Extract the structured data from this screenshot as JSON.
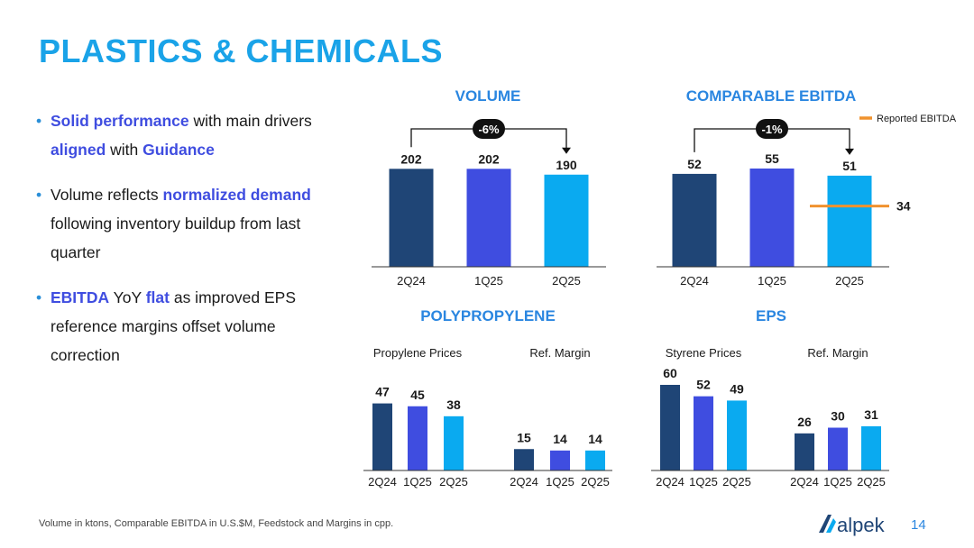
{
  "title": "PLASTICS & CHEMICALS",
  "bullets": [
    [
      {
        "t": "Solid performance",
        "h": true
      },
      {
        "t": " with main drivers ",
        "h": false
      },
      {
        "t": "aligned",
        "h": true
      },
      {
        "t": " with ",
        "h": false
      },
      {
        "t": "Guidance",
        "h": true
      }
    ],
    [
      {
        "t": "Volume reflects ",
        "h": false
      },
      {
        "t": "normalized demand",
        "h": true
      },
      {
        "t": " following inventory buildup from last quarter",
        "h": false
      }
    ],
    [
      {
        "t": "EBITDA",
        "h": true
      },
      {
        "t": " YoY ",
        "h": false
      },
      {
        "t": "flat",
        "h": true
      },
      {
        "t": " as improved EPS reference margins offset volume correction",
        "h": false
      }
    ]
  ],
  "footnote": "Volume in ktons, Comparable EBITDA in U.S.$M, Feedstock and Margins in cpp.",
  "page_number": "14",
  "logo_text": "alpek",
  "colors": {
    "c1": "#1f4576",
    "c2": "#3f4de0",
    "c3": "#0aaaf0",
    "accent": "#f0922e",
    "title": "#1aa3e8"
  },
  "chart_data": [
    {
      "id": "volume",
      "type": "bar",
      "title": "VOLUME",
      "categories": [
        "2Q24",
        "1Q25",
        "2Q25"
      ],
      "values": [
        202,
        202,
        190
      ],
      "ylim": [
        0,
        210
      ],
      "change_label": "-6%"
    },
    {
      "id": "ebitda",
      "type": "bar",
      "title": "COMPARABLE EBITDA",
      "categories": [
        "2Q24",
        "1Q25",
        "2Q25"
      ],
      "values": [
        52,
        55,
        51
      ],
      "ylim": [
        0,
        57
      ],
      "change_label": "-1%",
      "reported": {
        "label": "Reported EBITDA",
        "category": "2Q25",
        "value": 34
      }
    },
    {
      "id": "polypropylene",
      "type": "bar",
      "title": "POLYPROPYLENE",
      "groups": [
        {
          "label": "Propylene Prices",
          "categories": [
            "2Q24",
            "1Q25",
            "2Q25"
          ],
          "values": [
            47,
            45,
            38
          ]
        },
        {
          "label": "Ref. Margin",
          "categories": [
            "2Q24",
            "1Q25",
            "2Q25"
          ],
          "values": [
            15,
            14,
            14
          ]
        }
      ],
      "ylim": [
        0,
        60
      ]
    },
    {
      "id": "eps",
      "type": "bar",
      "title": "EPS",
      "groups": [
        {
          "label": "Styrene Prices",
          "categories": [
            "2Q24",
            "1Q25",
            "2Q25"
          ],
          "values": [
            60,
            52,
            49
          ]
        },
        {
          "label": "Ref. Margin",
          "categories": [
            "2Q24",
            "1Q25",
            "2Q25"
          ],
          "values": [
            26,
            30,
            31
          ]
        }
      ],
      "ylim": [
        0,
        60
      ]
    }
  ]
}
